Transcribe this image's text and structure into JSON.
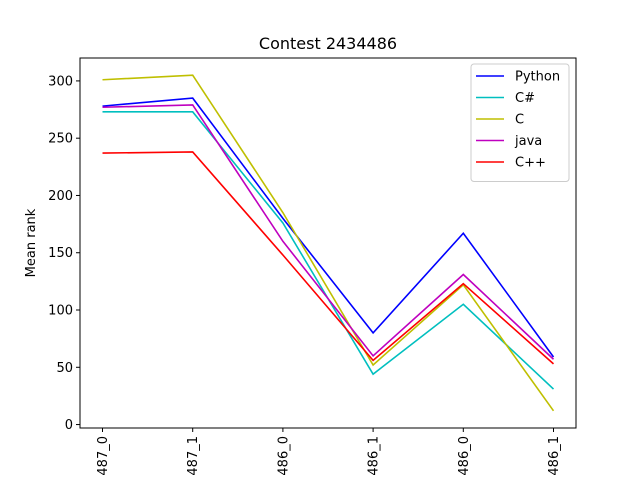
{
  "chart_data": {
    "type": "line",
    "title": "Contest 2434486",
    "xlabel": "",
    "ylabel": "Mean rank",
    "categories": [
      "487_0",
      "487_1",
      "486_0",
      "486_1",
      "486_0",
      "486_1"
    ],
    "ylim": [
      -3,
      320
    ],
    "yticks": [
      0,
      50,
      100,
      150,
      200,
      250,
      300
    ],
    "grid": false,
    "legend": "top-right",
    "series": [
      {
        "name": "Python",
        "color": "#0000ff",
        "values": [
          278,
          285,
          180,
          80,
          167,
          59
        ]
      },
      {
        "name": "C#",
        "color": "#00bfbf",
        "values": [
          273,
          273,
          176,
          44,
          105,
          31
        ]
      },
      {
        "name": "C",
        "color": "#bfbf00",
        "values": [
          301,
          305,
          185,
          52,
          122,
          12
        ]
      },
      {
        "name": "java",
        "color": "#bf00bf",
        "values": [
          277,
          279,
          160,
          60,
          131,
          57
        ]
      },
      {
        "name": "C++",
        "color": "#ff0000",
        "values": [
          237,
          238,
          148,
          56,
          123,
          53
        ]
      }
    ]
  }
}
